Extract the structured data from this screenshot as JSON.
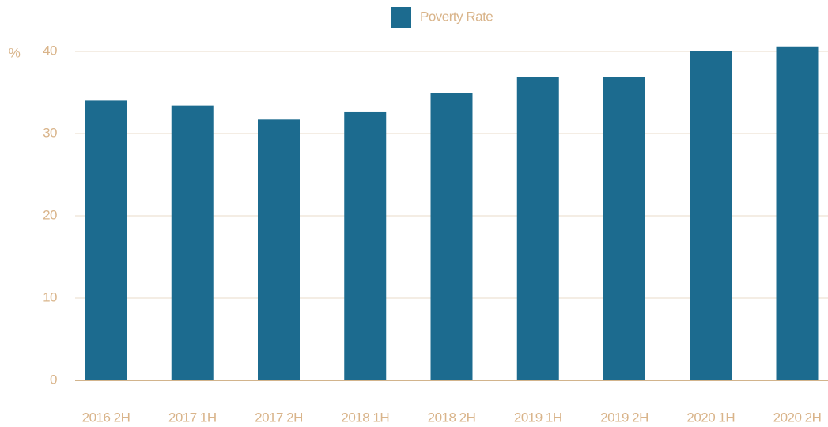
{
  "chart_data": {
    "type": "bar",
    "y_label": "%",
    "legend": "top",
    "series": [
      {
        "name": "Poverty Rate",
        "color": "#1c6b8f",
        "values": [
          34.0,
          33.4,
          31.7,
          32.6,
          35.0,
          36.9,
          36.9,
          40.0,
          40.6
        ]
      }
    ],
    "categories": [
      "2016 2H",
      "2017 1H",
      "2017 2H",
      "2018 1H",
      "2018 2H",
      "2019 1H",
      "2019 2H",
      "2020 1H",
      "2020 2H"
    ],
    "ylim": [
      0,
      45
    ],
    "yticks": [
      0,
      10,
      20,
      30,
      40
    ],
    "grid": true
  }
}
